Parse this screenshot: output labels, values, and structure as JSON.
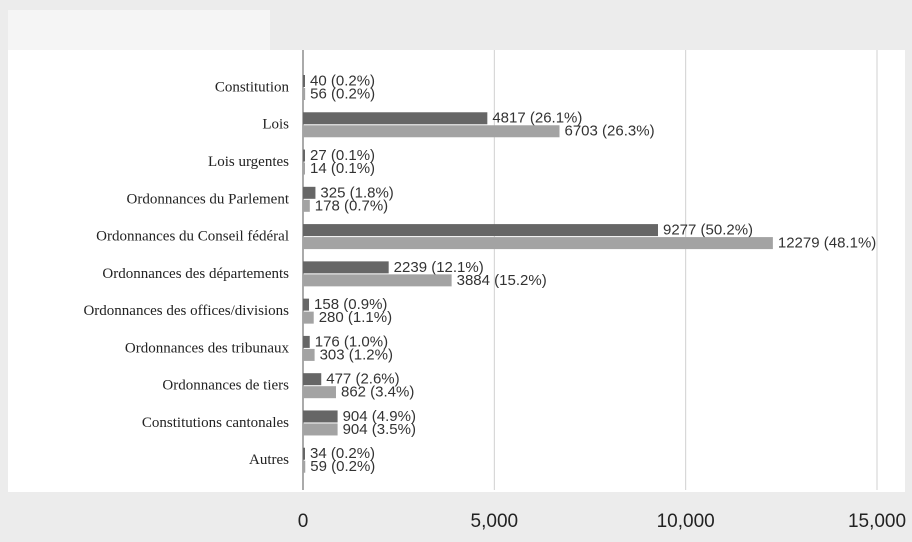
{
  "chart_data": {
    "type": "bar",
    "orientation": "horizontal",
    "categories": [
      "Constitution",
      "Lois",
      "Lois urgentes",
      "Ordonnances du Parlement",
      "Ordonnances du Conseil fédéral",
      "Ordonnances des départements",
      "Ordonnances des offices/divisions",
      "Ordonnances des tribunaux",
      "Ordonnances de tiers",
      "Constitutions cantonales",
      "Autres"
    ],
    "series": [
      {
        "color": "#666666",
        "values": [
          40,
          4817,
          27,
          325,
          9277,
          2239,
          158,
          176,
          477,
          904,
          34
        ],
        "value_labels": [
          "40 (0.2%)",
          "4817 (26.1%)",
          "27 (0.1%)",
          "325 (1.8%)",
          "9277 (50.2%)",
          "2239 (12.1%)",
          "158 (0.9%)",
          "176 (1.0%)",
          "477 (2.6%)",
          "904 (4.9%)",
          "34 (0.2%)"
        ]
      },
      {
        "color": "#a3a3a3",
        "values": [
          56,
          6703,
          14,
          178,
          12279,
          3884,
          280,
          303,
          862,
          904,
          59
        ],
        "value_labels": [
          "56 (0.2%)",
          "6703 (26.3%)",
          "14 (0.1%)",
          "178 (0.7%)",
          "12279 (48.1%)",
          "3884 (15.2%)",
          "280 (1.1%)",
          "303 (1.2%)",
          "862 (3.4%)",
          "904 (3.5%)",
          "59 (0.2%)"
        ]
      }
    ],
    "xlim": [
      0,
      15000
    ],
    "xticks": [
      0,
      {
        "value": 5000,
        "label": "5,000"
      },
      {
        "value": 10000,
        "label": "10,000"
      },
      {
        "value": 15000,
        "label": "15,000"
      }
    ],
    "grid": true
  }
}
